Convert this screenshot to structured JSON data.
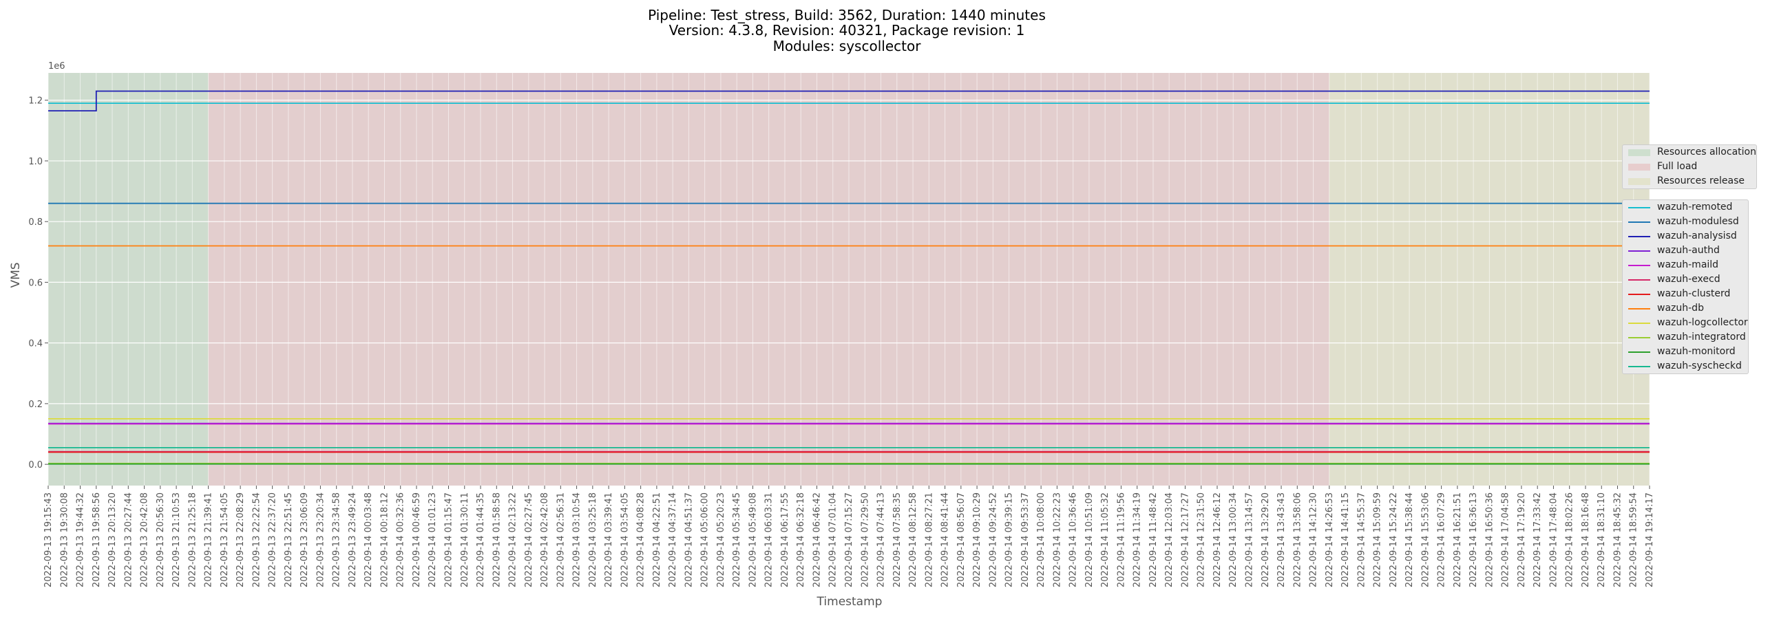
{
  "title": {
    "line1": "Pipeline: Test_stress, Build: 3562, Duration: 1440 minutes",
    "line2": "Version: 4.3.8, Revision: 40321, Package revision: 1",
    "line3": "Modules: syscollector"
  },
  "chart_data": {
    "type": "line",
    "xlabel": "Timestamp",
    "ylabel": "VMS",
    "y_offset_text": "1e6",
    "ylim": [
      -0.07,
      1.29
    ],
    "y_scale_note": "values in units of 1e6",
    "yticks": [
      0.0,
      0.2,
      0.4,
      0.6,
      0.8,
      1.0,
      1.2
    ],
    "ytick_labels": [
      "0.0",
      "0.2",
      "0.4",
      "0.6",
      "0.8",
      "1.0",
      "1.2"
    ],
    "grid": true,
    "legend_position": "center-right outside",
    "x_categories": [
      "2022-09-13 19:15:43",
      "2022-09-13 19:30:08",
      "2022-09-13 19:44:32",
      "2022-09-13 19:58:56",
      "2022-09-13 20:13:20",
      "2022-09-13 20:27:44",
      "2022-09-13 20:42:08",
      "2022-09-13 20:56:30",
      "2022-09-13 21:10:53",
      "2022-09-13 21:25:18",
      "2022-09-13 21:39:41",
      "2022-09-13 21:54:05",
      "2022-09-13 22:08:29",
      "2022-09-13 22:22:54",
      "2022-09-13 22:37:20",
      "2022-09-13 22:51:45",
      "2022-09-13 23:06:09",
      "2022-09-13 23:20:34",
      "2022-09-13 23:34:58",
      "2022-09-13 23:49:24",
      "2022-09-14 00:03:48",
      "2022-09-14 00:18:12",
      "2022-09-14 00:32:36",
      "2022-09-14 00:46:59",
      "2022-09-14 01:01:23",
      "2022-09-14 01:15:47",
      "2022-09-14 01:30:11",
      "2022-09-14 01:44:35",
      "2022-09-14 01:58:58",
      "2022-09-14 02:13:22",
      "2022-09-14 02:27:45",
      "2022-09-14 02:42:08",
      "2022-09-14 02:56:31",
      "2022-09-14 03:10:54",
      "2022-09-14 03:25:18",
      "2022-09-14 03:39:41",
      "2022-09-14 03:54:05",
      "2022-09-14 04:08:28",
      "2022-09-14 04:22:51",
      "2022-09-14 04:37:14",
      "2022-09-14 04:51:37",
      "2022-09-14 05:06:00",
      "2022-09-14 05:20:23",
      "2022-09-14 05:34:45",
      "2022-09-14 05:49:08",
      "2022-09-14 06:03:31",
      "2022-09-14 06:17:55",
      "2022-09-14 06:32:18",
      "2022-09-14 06:46:42",
      "2022-09-14 07:01:04",
      "2022-09-14 07:15:27",
      "2022-09-14 07:29:50",
      "2022-09-14 07:44:13",
      "2022-09-14 07:58:35",
      "2022-09-14 08:12:58",
      "2022-09-14 08:27:21",
      "2022-09-14 08:41:44",
      "2022-09-14 08:56:07",
      "2022-09-14 09:10:29",
      "2022-09-14 09:24:52",
      "2022-09-14 09:39:15",
      "2022-09-14 09:53:37",
      "2022-09-14 10:08:00",
      "2022-09-14 10:22:23",
      "2022-09-14 10:36:46",
      "2022-09-14 10:51:09",
      "2022-09-14 11:05:32",
      "2022-09-14 11:19:56",
      "2022-09-14 11:34:19",
      "2022-09-14 11:48:42",
      "2022-09-14 12:03:04",
      "2022-09-14 12:17:27",
      "2022-09-14 12:31:50",
      "2022-09-14 12:46:12",
      "2022-09-14 13:00:34",
      "2022-09-14 13:14:57",
      "2022-09-14 13:29:20",
      "2022-09-14 13:43:43",
      "2022-09-14 13:58:06",
      "2022-09-14 14:12:30",
      "2022-09-14 14:26:53",
      "2022-09-14 14:41:15",
      "2022-09-14 14:55:37",
      "2022-09-14 15:09:59",
      "2022-09-14 15:24:22",
      "2022-09-14 15:38:44",
      "2022-09-14 15:53:06",
      "2022-09-14 16:07:29",
      "2022-09-14 16:21:51",
      "2022-09-14 16:36:13",
      "2022-09-14 16:50:36",
      "2022-09-14 17:04:58",
      "2022-09-14 17:19:20",
      "2022-09-14 17:33:42",
      "2022-09-14 17:48:04",
      "2022-09-14 18:02:26",
      "2022-09-14 18:16:48",
      "2022-09-14 18:31:10",
      "2022-09-14 18:45:32",
      "2022-09-14 18:59:54",
      "2022-09-14 19:14:17"
    ],
    "phases": [
      {
        "name": "Resources allocation",
        "start_index": 0,
        "end_index": 10,
        "color": "#2ca02c",
        "alpha": 0.1
      },
      {
        "name": "Full load",
        "start_index": 10,
        "end_index": 80,
        "color": "#d62728",
        "alpha": 0.1
      },
      {
        "name": "Resources release",
        "start_index": 80,
        "end_index": 100,
        "color": "#bcbd22",
        "alpha": 0.1
      }
    ],
    "series": [
      {
        "name": "wazuh-remoted",
        "color": "#17becf",
        "steps": [
          [
            0,
            1.19
          ]
        ]
      },
      {
        "name": "wazuh-modulesd",
        "color": "#1f77b4",
        "steps": [
          [
            0,
            0.86
          ]
        ]
      },
      {
        "name": "wazuh-analysisd",
        "color": "#1f1fb4",
        "steps": [
          [
            0,
            1.165
          ],
          [
            3,
            1.23
          ]
        ]
      },
      {
        "name": "wazuh-authd",
        "color": "#7f1fd4",
        "steps": [
          [
            0,
            0.135
          ]
        ]
      },
      {
        "name": "wazuh-maild",
        "color": "#c51bcf",
        "steps": [
          [
            0,
            0.133
          ]
        ]
      },
      {
        "name": "wazuh-execd",
        "color": "#d62768",
        "steps": [
          [
            0,
            0.042
          ]
        ]
      },
      {
        "name": "wazuh-clusterd",
        "color": "#e41a1c",
        "steps": [
          [
            0,
            0.04
          ]
        ]
      },
      {
        "name": "wazuh-db",
        "color": "#ff7f0e",
        "steps": [
          [
            0,
            0.72
          ]
        ]
      },
      {
        "name": "wazuh-logcollector",
        "color": "#dbdb3d",
        "steps": [
          [
            0,
            0.15
          ]
        ]
      },
      {
        "name": "wazuh-integratord",
        "color": "#9acd32",
        "steps": [
          [
            0,
            0.003
          ]
        ]
      },
      {
        "name": "wazuh-monitord",
        "color": "#2ca02c",
        "steps": [
          [
            0,
            0.001
          ]
        ]
      },
      {
        "name": "wazuh-syscheckd",
        "color": "#17b890",
        "steps": [
          [
            0,
            0.055
          ]
        ]
      }
    ]
  }
}
